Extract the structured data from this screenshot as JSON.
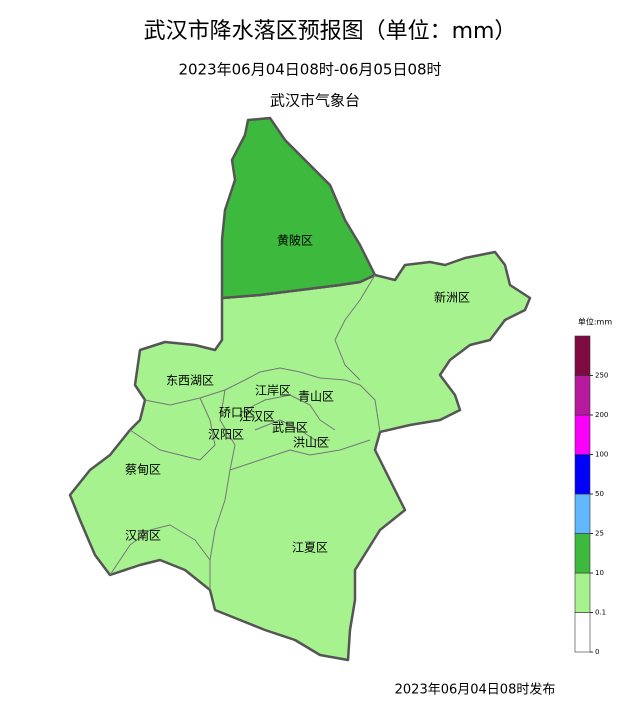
{
  "header": {
    "title": "武汉市降水落区预报图（单位：mm）",
    "subtitle": "2023年06月04日08时-06月05日08时",
    "issuer": "武汉市气象台"
  },
  "districts": [
    {
      "label": "黄陂区"
    },
    {
      "label": "新洲区"
    },
    {
      "label": "东西湖区"
    },
    {
      "label": "江岸区"
    },
    {
      "label": "青山区"
    },
    {
      "label": "硚口区"
    },
    {
      "label": "江汉区"
    },
    {
      "label": "汉阳区"
    },
    {
      "label": "武昌区"
    },
    {
      "label": "洪山区"
    },
    {
      "label": "蔡甸区"
    },
    {
      "label": "汉南区"
    },
    {
      "label": "江夏区"
    }
  ],
  "legend": {
    "unit": "单位:mm",
    "colors": [
      "#ffffff",
      "#a6f28f",
      "#3dba3d",
      "#61b8ff",
      "#0000ff",
      "#fa00fa",
      "#b5199e",
      "#7e0a3f"
    ],
    "ticks": [
      0,
      0.1,
      10,
      25,
      50,
      100,
      200,
      250
    ]
  },
  "footer": {
    "release": "2023年06月04日08时发布"
  }
}
